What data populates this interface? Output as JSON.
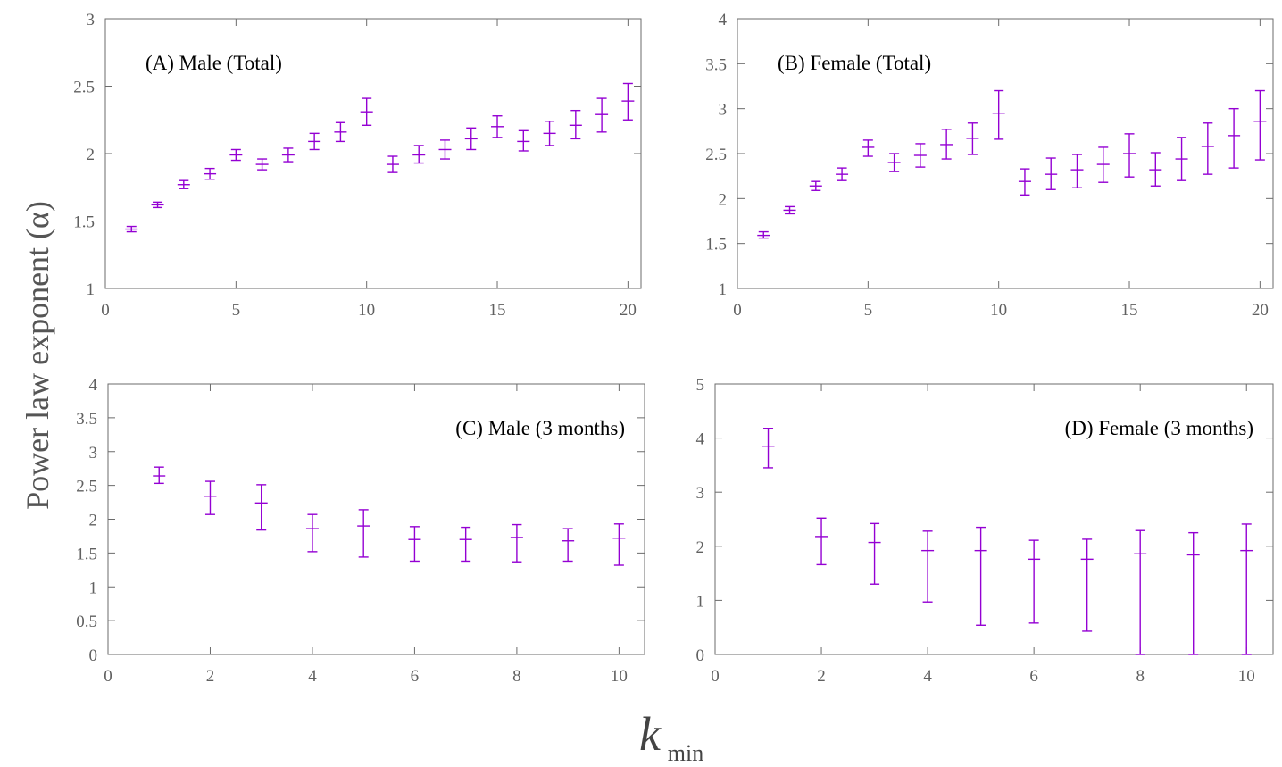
{
  "figure": {
    "ylabel": "Power law exponent (α)",
    "xlabel_main": "k",
    "xlabel_sub": "min",
    "series_color": "#9400D3"
  },
  "chart_data": [
    {
      "type": "scatter",
      "title": "(A) Male (Total)",
      "title_position": "top-left",
      "xlim": [
        0,
        20.5
      ],
      "ylim": [
        1,
        3
      ],
      "xticks": [
        0,
        5,
        10,
        15,
        20
      ],
      "yticks": [
        1,
        1.5,
        2,
        2.5,
        3
      ],
      "grid": false,
      "x": [
        1,
        2,
        3,
        4,
        5,
        6,
        7,
        8,
        9,
        10,
        11,
        12,
        13,
        14,
        15,
        16,
        17,
        18,
        19,
        20
      ],
      "y": [
        1.44,
        1.62,
        1.77,
        1.85,
        1.99,
        1.92,
        1.99,
        2.09,
        2.16,
        2.31,
        1.92,
        1.99,
        2.03,
        2.11,
        2.2,
        2.09,
        2.15,
        2.21,
        2.29,
        2.39
      ],
      "y_low": [
        1.42,
        1.6,
        1.74,
        1.81,
        1.95,
        1.88,
        1.94,
        2.03,
        2.09,
        2.21,
        1.86,
        1.93,
        1.96,
        2.03,
        2.12,
        2.02,
        2.06,
        2.11,
        2.16,
        2.25
      ],
      "y_high": [
        1.46,
        1.64,
        1.8,
        1.89,
        2.03,
        1.96,
        2.04,
        2.15,
        2.23,
        2.41,
        1.98,
        2.06,
        2.1,
        2.19,
        2.28,
        2.17,
        2.24,
        2.32,
        2.41,
        2.52
      ]
    },
    {
      "type": "scatter",
      "title": "(B) Female (Total)",
      "title_position": "top-left",
      "xlim": [
        0,
        20.5
      ],
      "ylim": [
        1,
        4
      ],
      "xticks": [
        0,
        5,
        10,
        15,
        20
      ],
      "yticks": [
        1,
        1.5,
        2,
        2.5,
        3,
        3.5,
        4
      ],
      "grid": false,
      "x": [
        1,
        2,
        3,
        4,
        5,
        6,
        7,
        8,
        9,
        10,
        11,
        12,
        13,
        14,
        15,
        16,
        17,
        18,
        19,
        20
      ],
      "y": [
        1.59,
        1.87,
        2.14,
        2.27,
        2.57,
        2.4,
        2.48,
        2.6,
        2.67,
        2.95,
        2.19,
        2.27,
        2.32,
        2.38,
        2.5,
        2.32,
        2.44,
        2.58,
        2.7,
        2.86
      ],
      "y_low": [
        1.56,
        1.83,
        2.09,
        2.2,
        2.47,
        2.3,
        2.35,
        2.44,
        2.49,
        2.66,
        2.04,
        2.1,
        2.12,
        2.18,
        2.24,
        2.14,
        2.2,
        2.27,
        2.34,
        2.43
      ],
      "y_high": [
        1.63,
        1.91,
        2.19,
        2.34,
        2.65,
        2.5,
        2.61,
        2.77,
        2.84,
        3.2,
        2.33,
        2.45,
        2.49,
        2.57,
        2.72,
        2.51,
        2.68,
        2.84,
        3.0,
        3.2
      ]
    },
    {
      "type": "scatter",
      "title": "(C) Male (3 months)",
      "title_position": "top-right",
      "xlim": [
        0,
        10.5
      ],
      "ylim": [
        0,
        4
      ],
      "xticks": [
        0,
        2,
        4,
        6,
        8,
        10
      ],
      "yticks": [
        0,
        0.5,
        1,
        1.5,
        2,
        2.5,
        3,
        3.5,
        4
      ],
      "grid": false,
      "x": [
        1,
        2,
        3,
        4,
        5,
        6,
        7,
        8,
        9,
        10
      ],
      "y": [
        2.64,
        2.34,
        2.24,
        1.86,
        1.9,
        1.7,
        1.7,
        1.73,
        1.68,
        1.72
      ],
      "y_low": [
        2.53,
        2.07,
        1.84,
        1.52,
        1.44,
        1.38,
        1.38,
        1.37,
        1.38,
        1.32
      ],
      "y_high": [
        2.77,
        2.56,
        2.51,
        2.07,
        2.14,
        1.89,
        1.88,
        1.92,
        1.86,
        1.93
      ]
    },
    {
      "type": "scatter",
      "title": "(D) Female (3 months)",
      "title_position": "top-right",
      "xlim": [
        0,
        10.5
      ],
      "ylim": [
        0,
        5
      ],
      "xticks": [
        0,
        2,
        4,
        6,
        8,
        10
      ],
      "yticks": [
        0,
        1,
        2,
        3,
        4,
        5
      ],
      "grid": false,
      "x": [
        1,
        2,
        3,
        4,
        5,
        6,
        7,
        8,
        9,
        10
      ],
      "y": [
        3.85,
        2.18,
        2.07,
        1.92,
        1.92,
        1.76,
        1.76,
        1.86,
        1.84,
        1.92
      ],
      "y_low": [
        3.45,
        1.66,
        1.3,
        0.97,
        0.54,
        0.58,
        0.43,
        0.0,
        0.0,
        0.0
      ],
      "y_high": [
        4.18,
        2.52,
        2.42,
        2.28,
        2.35,
        2.11,
        2.13,
        2.29,
        2.25,
        2.41
      ]
    }
  ]
}
